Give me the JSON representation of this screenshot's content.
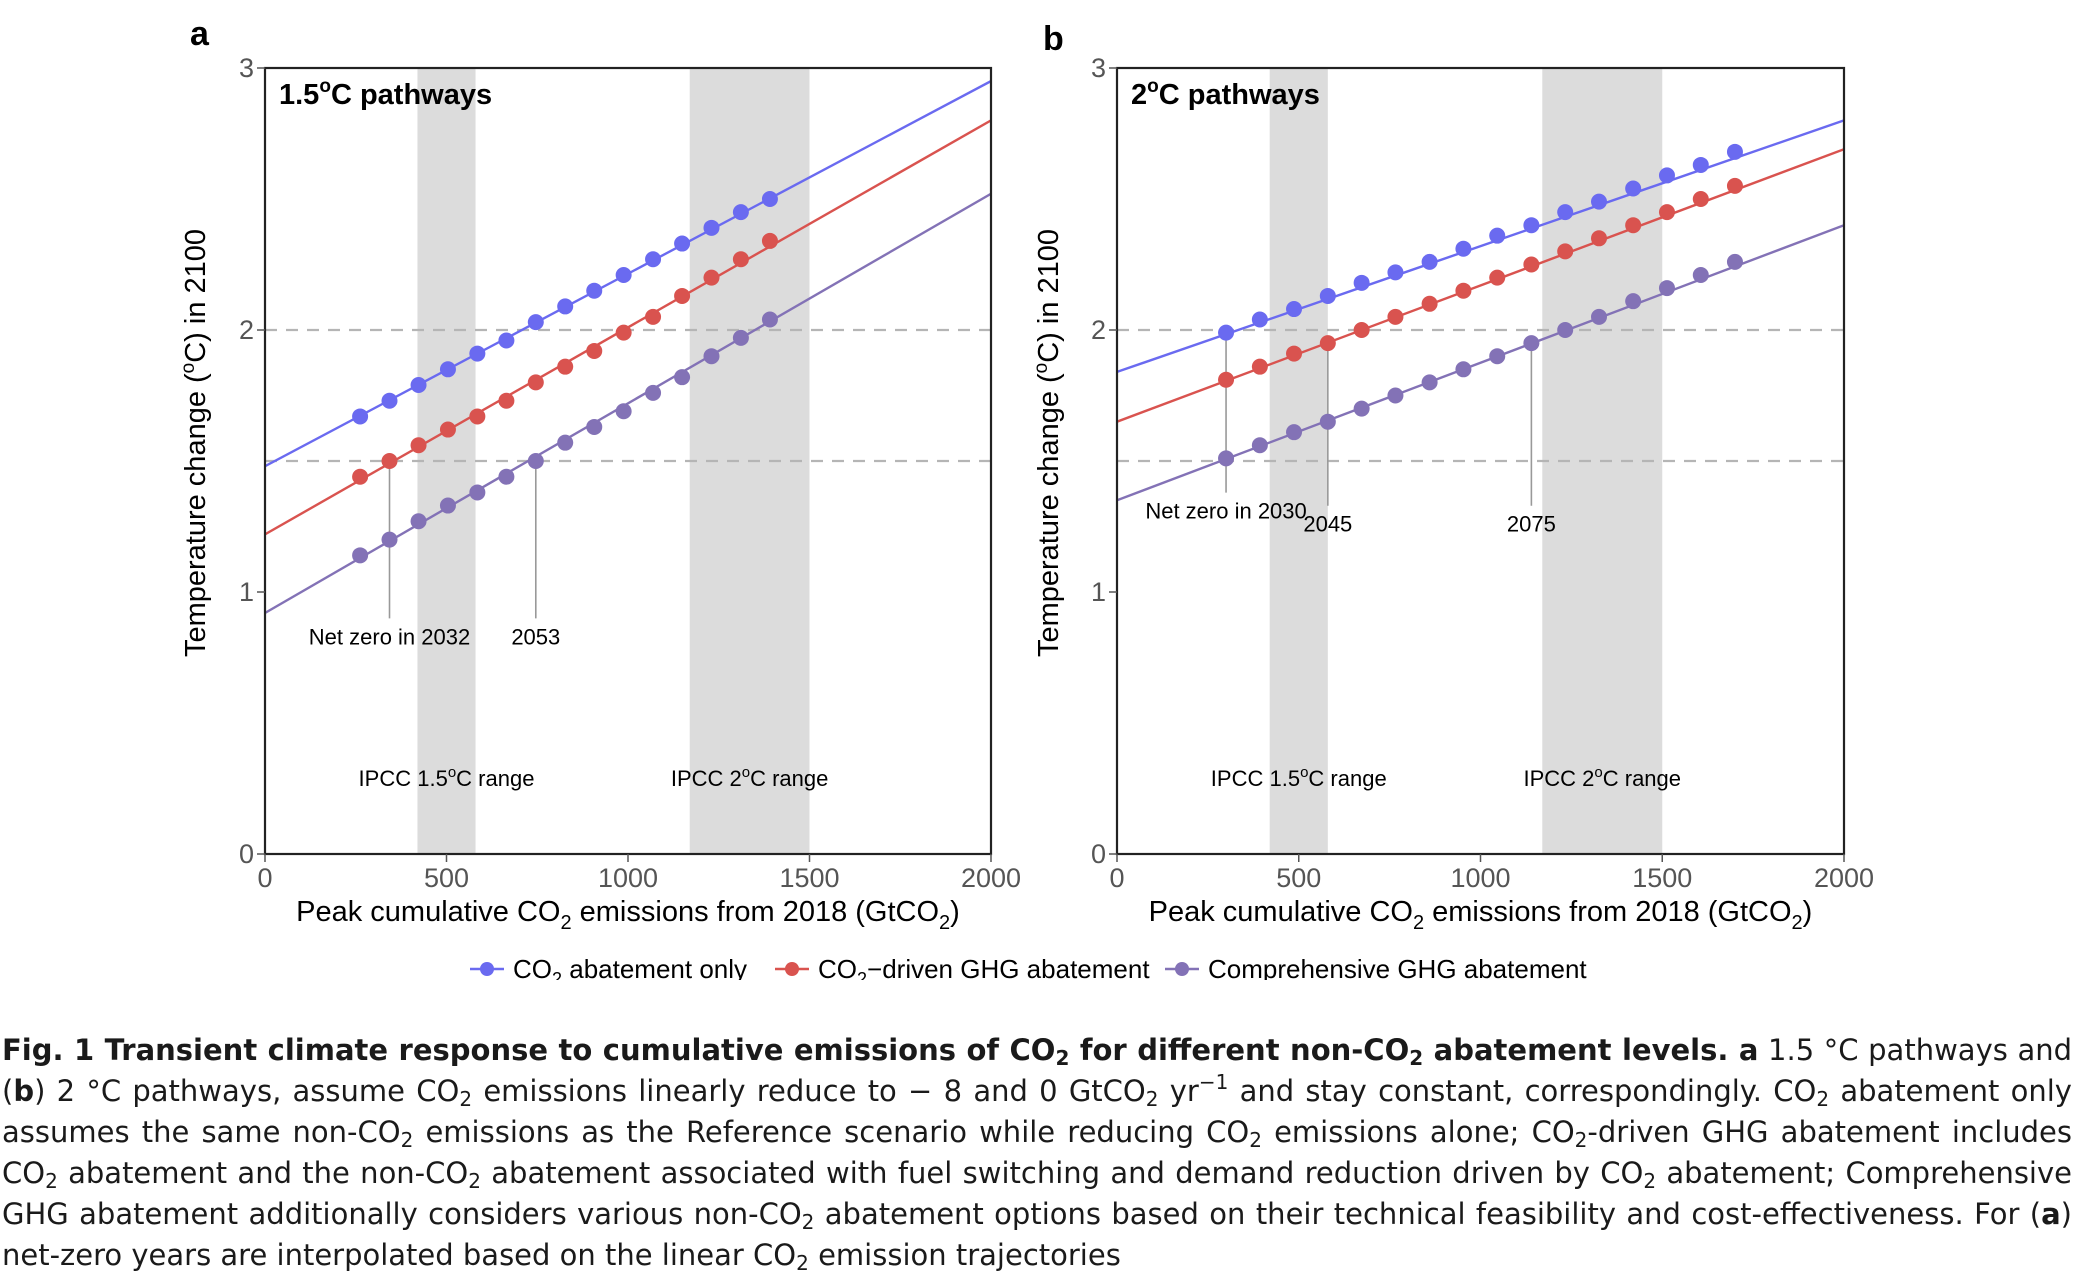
{
  "figure": {
    "panel_labels": [
      "a",
      "b"
    ],
    "x_axis_label": {
      "prefix": "Peak cumulative CO",
      "sub": "2",
      "middle": " emissions from 2018 (GtCO",
      "suffix": ")"
    },
    "y_axis_label": {
      "prefix": "Temperature change (",
      "sup": "o",
      "suffix": "C) in 2100"
    },
    "legend": [
      {
        "label_parts": [
          "CO",
          "2",
          " abatement only"
        ],
        "color": "#6a6af0"
      },
      {
        "label_parts": [
          "CO",
          "2",
          "−driven GHG abatement"
        ],
        "color": "#d9534f"
      },
      {
        "label_parts": [
          "",
          "",
          "Comprehensive GHG abatement"
        ],
        "color": "#8372b6"
      }
    ],
    "shade_labels": {
      "ipcc15": {
        "prefix": "IPCC 1.5",
        "sup": "o",
        "suffix": "C range"
      },
      "ipcc20": {
        "prefix": "IPCC 2",
        "sup": "o",
        "suffix": "C range"
      }
    }
  },
  "chart_data": [
    {
      "type": "scatter",
      "panel": "a",
      "title": {
        "prefix": "1.5",
        "sup": "o",
        "suffix": "C pathways"
      },
      "xlim": [
        0,
        2000
      ],
      "ylim": [
        0,
        3
      ],
      "x_ticks": [
        "0",
        "500",
        "1000",
        "1500",
        "2000"
      ],
      "y_ticks": [
        "0",
        "1",
        "2",
        "3"
      ],
      "hlines": [
        1.5,
        2.0
      ],
      "shaded_ranges": [
        {
          "x": [
            420,
            580
          ],
          "label": "ipcc15"
        },
        {
          "x": [
            1170,
            1500
          ],
          "label": "ipcc20"
        }
      ],
      "series": [
        {
          "color": "#6a6af0",
          "fit_line": {
            "x": [
              0,
              2000
            ],
            "y": [
              1.48,
              2.95
            ]
          },
          "x": [
            262,
            343,
            423,
            504,
            585,
            665,
            746,
            827,
            907,
            988,
            1069,
            1149,
            1230,
            1311,
            1391
          ],
          "y": [
            1.67,
            1.73,
            1.79,
            1.85,
            1.91,
            1.96,
            2.03,
            2.09,
            2.15,
            2.21,
            2.27,
            2.33,
            2.39,
            2.45,
            2.5
          ]
        },
        {
          "color": "#d9534f",
          "fit_line": {
            "x": [
              0,
              2000
            ],
            "y": [
              1.22,
              2.8
            ]
          },
          "x": [
            262,
            343,
            423,
            504,
            585,
            665,
            746,
            827,
            907,
            988,
            1069,
            1149,
            1230,
            1311,
            1391
          ],
          "y": [
            1.44,
            1.5,
            1.56,
            1.62,
            1.67,
            1.73,
            1.8,
            1.86,
            1.92,
            1.99,
            2.05,
            2.13,
            2.2,
            2.27,
            2.34
          ]
        },
        {
          "color": "#8372b6",
          "fit_line": {
            "x": [
              0,
              2000
            ],
            "y": [
              0.92,
              2.52
            ]
          },
          "x": [
            262,
            343,
            423,
            504,
            585,
            665,
            746,
            827,
            907,
            988,
            1069,
            1149,
            1230,
            1311,
            1391
          ],
          "y": [
            1.14,
            1.2,
            1.27,
            1.33,
            1.38,
            1.44,
            1.5,
            1.57,
            1.63,
            1.69,
            1.76,
            1.82,
            1.9,
            1.97,
            2.04
          ]
        }
      ],
      "annotations": [
        {
          "text": "Net zero in 2032",
          "x": 343,
          "y": 1.5,
          "anchor": "middle",
          "text_y": 0.8
        },
        {
          "text": "2053",
          "x": 746,
          "y": 1.5,
          "anchor": "middle",
          "text_y": 0.8
        }
      ]
    },
    {
      "type": "scatter",
      "panel": "b",
      "title": {
        "prefix": "2",
        "sup": "o",
        "suffix": "C pathways"
      },
      "xlim": [
        0,
        2000
      ],
      "ylim": [
        0,
        3
      ],
      "x_ticks": [
        "0",
        "500",
        "1000",
        "1500",
        "2000"
      ],
      "y_ticks": [
        "0",
        "1",
        "2",
        "3"
      ],
      "hlines": [
        1.5,
        2.0
      ],
      "shaded_ranges": [
        {
          "x": [
            420,
            580
          ],
          "label": "ipcc15"
        },
        {
          "x": [
            1170,
            1500
          ],
          "label": "ipcc20"
        }
      ],
      "series": [
        {
          "color": "#6a6af0",
          "fit_line": {
            "x": [
              0,
              2000
            ],
            "y": [
              1.84,
              2.8
            ]
          },
          "x": [
            300,
            393,
            487,
            580,
            673,
            766,
            860,
            953,
            1046,
            1140,
            1233,
            1326,
            1420,
            1513,
            1606,
            1700
          ],
          "y": [
            1.99,
            2.04,
            2.08,
            2.13,
            2.18,
            2.22,
            2.26,
            2.31,
            2.36,
            2.4,
            2.45,
            2.49,
            2.54,
            2.59,
            2.63,
            2.68
          ]
        },
        {
          "color": "#d9534f",
          "fit_line": {
            "x": [
              0,
              2000
            ],
            "y": [
              1.65,
              2.69
            ]
          },
          "x": [
            300,
            393,
            487,
            580,
            673,
            766,
            860,
            953,
            1046,
            1140,
            1233,
            1326,
            1420,
            1513,
            1606,
            1700
          ],
          "y": [
            1.81,
            1.86,
            1.91,
            1.95,
            2.0,
            2.05,
            2.1,
            2.15,
            2.2,
            2.25,
            2.3,
            2.35,
            2.4,
            2.45,
            2.5,
            2.55
          ]
        },
        {
          "color": "#8372b6",
          "fit_line": {
            "x": [
              0,
              2000
            ],
            "y": [
              1.35,
              2.4
            ]
          },
          "x": [
            300,
            393,
            487,
            580,
            673,
            766,
            860,
            953,
            1046,
            1140,
            1233,
            1326,
            1420,
            1513,
            1606,
            1700
          ],
          "y": [
            1.51,
            1.56,
            1.61,
            1.65,
            1.7,
            1.75,
            1.8,
            1.85,
            1.9,
            1.95,
            2.0,
            2.05,
            2.11,
            2.16,
            2.21,
            2.26
          ]
        }
      ],
      "annotations": [
        {
          "text": "Net zero in 2030",
          "x": 300,
          "y": 1.99,
          "anchor": "middle",
          "text_y": 1.28
        },
        {
          "text": "2045",
          "x": 580,
          "y": 1.95,
          "anchor": "middle",
          "text_y": 1.23
        },
        {
          "text": "2075",
          "x": 1140,
          "y": 1.95,
          "anchor": "middle",
          "text_y": 1.23
        }
      ]
    }
  ],
  "caption": {
    "title_parts": [
      "Fig. 1 Transient climate response to cumulative emissions of CO",
      "2",
      " for different non-CO",
      "2",
      " abatement levels. "
    ],
    "body_html_parts": [
      {
        "t": "a",
        "bold": true
      },
      {
        "t": " 1.5 °C pathways and ("
      },
      {
        "t": "b",
        "bold": true
      },
      {
        "t": ") 2 °C pathways, assume CO"
      },
      {
        "t": "2",
        "sub": true
      },
      {
        "t": " emissions linearly reduce to − 8 and 0 GtCO"
      },
      {
        "t": "2",
        "sub": true
      },
      {
        "t": " yr"
      },
      {
        "t": "−1",
        "sup": true
      },
      {
        "t": " and stay constant, correspondingly. CO"
      },
      {
        "t": "2",
        "sub": true
      },
      {
        "t": " abatement only assumes the same non-CO"
      },
      {
        "t": "2",
        "sub": true
      },
      {
        "t": " emissions as the Reference scenario while reducing CO"
      },
      {
        "t": "2",
        "sub": true
      },
      {
        "t": " emissions alone; CO"
      },
      {
        "t": "2",
        "sub": true
      },
      {
        "t": "-driven GHG abatement includes CO"
      },
      {
        "t": "2",
        "sub": true
      },
      {
        "t": " abatement and the non-CO"
      },
      {
        "t": "2",
        "sub": true
      },
      {
        "t": " abatement associated with fuel switching and demand reduction driven by CO"
      },
      {
        "t": "2",
        "sub": true
      },
      {
        "t": " abatement; Comprehensive GHG abatement additionally considers various non-CO"
      },
      {
        "t": "2",
        "sub": true
      },
      {
        "t": " abatement options based on their technical feasibility and cost-effectiveness. For ("
      },
      {
        "t": "a",
        "bold": true
      },
      {
        "t": ") net-zero years are interpolated based on the linear CO"
      },
      {
        "t": "2",
        "sub": true
      },
      {
        "t": " emission trajectories"
      }
    ]
  }
}
